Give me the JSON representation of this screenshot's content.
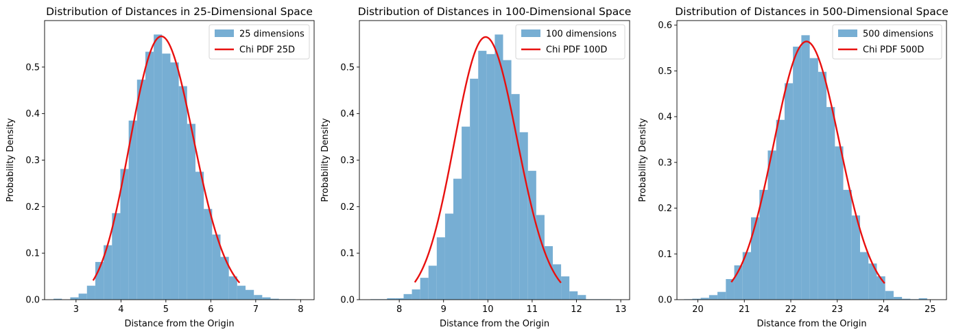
{
  "chart_data": [
    {
      "type": "histogram",
      "title": "Distribution of Distances in 25-Dimensional Space",
      "xlabel": "Distance from the Origin",
      "ylabel": "Probability Density",
      "xlim": [
        2.3,
        8.3
      ],
      "ylim": [
        0,
        0.6
      ],
      "xticks": [
        3,
        4,
        5,
        6,
        7,
        8
      ],
      "yticks": [
        0.0,
        0.1,
        0.2,
        0.3,
        0.4,
        0.5
      ],
      "legend_position": "top-right",
      "bins": {
        "start": 2.5,
        "width": 0.1858,
        "values": [
          0.002,
          0.0,
          0.005,
          0.013,
          0.03,
          0.081,
          0.117,
          0.186,
          0.281,
          0.385,
          0.473,
          0.533,
          0.57,
          0.529,
          0.51,
          0.459,
          0.378,
          0.275,
          0.195,
          0.14,
          0.092,
          0.05,
          0.03,
          0.021,
          0.01,
          0.005,
          0.002,
          0.001,
          0.001,
          0.0005
        ]
      },
      "series": [
        {
          "name": "25 dimensions",
          "kind": "histogram",
          "color": "#77aed3"
        },
        {
          "name": "Chi PDF 25D",
          "kind": "line",
          "color": "#e8100f",
          "df": 25,
          "x_range": [
            3.38,
            6.64
          ]
        }
      ]
    },
    {
      "type": "histogram",
      "title": "Distribution of Distances in 100-Dimensional Space",
      "xlabel": "Distance from the Origin",
      "ylabel": "Probability Density",
      "xlim": [
        7.1,
        13.2
      ],
      "ylim": [
        0,
        0.6
      ],
      "xticks": [
        8,
        9,
        10,
        11,
        12,
        13
      ],
      "yticks": [
        0.0,
        0.1,
        0.2,
        0.3,
        0.4,
        0.5
      ],
      "legend_position": "top-right",
      "bins": {
        "start": 7.35,
        "width": 0.1871,
        "values": [
          0.001,
          0.001,
          0.003,
          0.003,
          0.012,
          0.022,
          0.047,
          0.073,
          0.134,
          0.185,
          0.26,
          0.372,
          0.475,
          0.535,
          0.528,
          0.57,
          0.515,
          0.442,
          0.36,
          0.277,
          0.182,
          0.115,
          0.076,
          0.05,
          0.018,
          0.01,
          0.001,
          0.001,
          0.001,
          0.0005
        ]
      },
      "series": [
        {
          "name": "100 dimensions",
          "kind": "histogram",
          "color": "#77aed3"
        },
        {
          "name": "Chi PDF 100D",
          "kind": "line",
          "color": "#e8100f",
          "df": 100,
          "x_range": [
            8.35,
            11.65
          ]
        }
      ]
    },
    {
      "type": "histogram",
      "title": "Distribution of Distances in 500-Dimensional Space",
      "xlabel": "Distance from the Origin",
      "ylabel": "Probability Density",
      "xlim": [
        19.55,
        25.35
      ],
      "ylim": [
        0,
        0.61
      ],
      "xticks": [
        20,
        21,
        22,
        23,
        24,
        25
      ],
      "yticks": [
        0.0,
        0.1,
        0.2,
        0.3,
        0.4,
        0.5,
        0.6
      ],
      "legend_position": "top-right",
      "bins": {
        "start": 19.7,
        "width": 0.1805,
        "values": [
          0.001,
          0.002,
          0.004,
          0.01,
          0.017,
          0.045,
          0.075,
          0.104,
          0.18,
          0.24,
          0.326,
          0.393,
          0.473,
          0.553,
          0.578,
          0.528,
          0.498,
          0.421,
          0.335,
          0.24,
          0.184,
          0.104,
          0.079,
          0.051,
          0.019,
          0.006,
          0.002,
          0.001,
          0.003,
          0.0005
        ]
      },
      "series": [
        {
          "name": "500 dimensions",
          "kind": "histogram",
          "color": "#77aed3"
        },
        {
          "name": "Chi PDF 500D",
          "kind": "line",
          "color": "#e8100f",
          "df": 500,
          "x_range": [
            20.72,
            24.02
          ]
        }
      ]
    }
  ]
}
